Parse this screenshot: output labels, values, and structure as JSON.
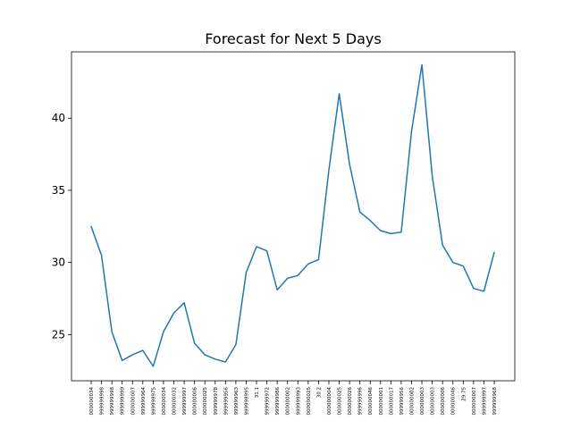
{
  "chart_data": {
    "type": "line",
    "title": "Forecast for Next 5 Days",
    "xlabel": "",
    "ylabel": "",
    "ylim": [
      21.8,
      44.6
    ],
    "yticks": [
      25,
      30,
      35,
      40
    ],
    "grid": false,
    "line_color": "#1f77b4",
    "categories": [
      "000000034",
      "999999998",
      "999999998",
      "999999999",
      "000000007",
      "999999964",
      "999999975",
      "000000034",
      "000000032",
      "999999997",
      "000000006",
      "000000025",
      "999999978",
      "999999956",
      "999999963",
      "999999995",
      "31.1",
      "999999972",
      "999999986",
      "000000002",
      "999999993",
      "000000025",
      "30.2",
      "000000004",
      "000000025",
      "000000026",
      "999999996",
      "000000046",
      "000000001",
      "000000017",
      "999999956",
      "000000002",
      "000000003",
      "000000003",
      "000000006",
      "000000046",
      "29.75",
      "000000007",
      "999999997",
      "999999968"
    ],
    "series": [
      {
        "name": "",
        "values": [
          32.5,
          30.5,
          25.2,
          23.2,
          23.6,
          23.9,
          22.8,
          25.2,
          26.5,
          27.2,
          24.4,
          23.6,
          23.3,
          23.1,
          24.3,
          29.3,
          31.1,
          30.8,
          28.1,
          28.9,
          29.1,
          29.9,
          30.2,
          36.4,
          41.7,
          36.8,
          33.5,
          32.9,
          32.2,
          32.0,
          32.1,
          39.1,
          43.7,
          36.0,
          31.2,
          30.0,
          29.75,
          28.2,
          28.0,
          30.7
        ]
      }
    ]
  }
}
